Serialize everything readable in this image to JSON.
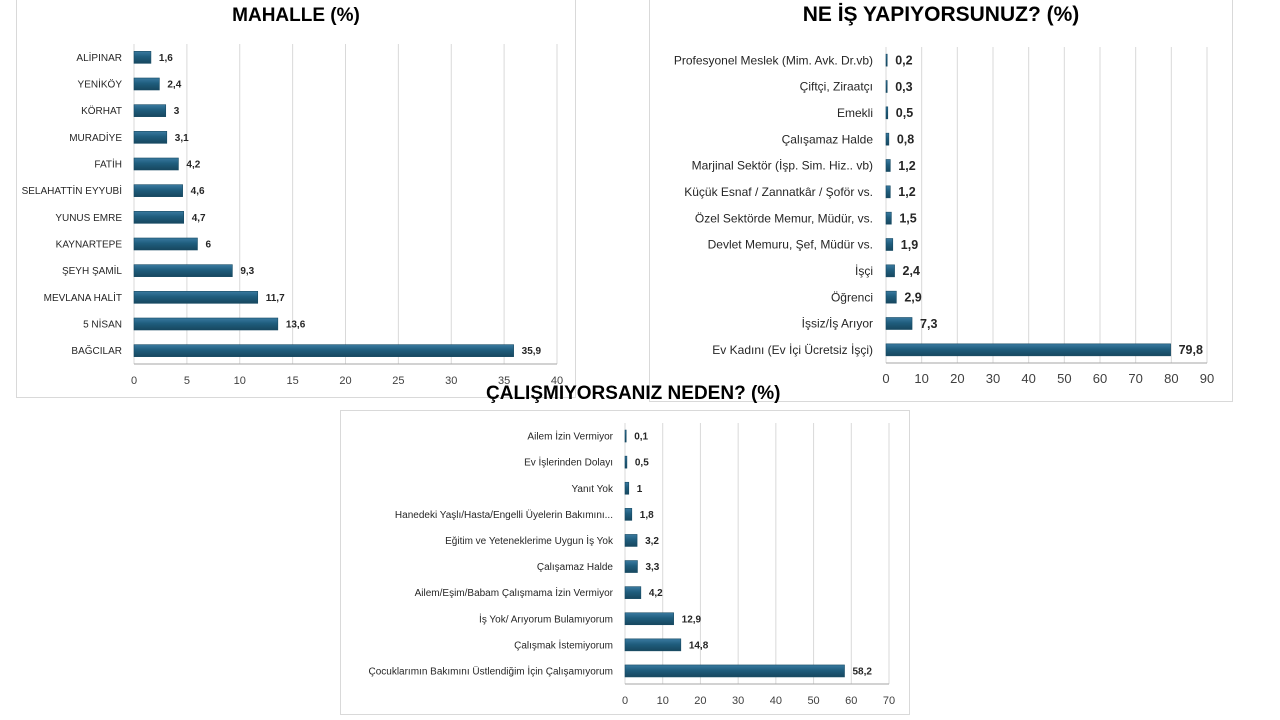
{
  "colors": {
    "bar": "#1f5d7d",
    "bar_light": "#3a7aa0",
    "grid": "#d9d9d9",
    "axis": "#a6a6a6"
  },
  "chart_data": [
    {
      "type": "bar",
      "orientation": "horizontal",
      "title": "MAHALLE (%)",
      "categories": [
        "ALİPINAR",
        "YENİKÖY",
        "KÖRHAT",
        "MURADİYE",
        "FATİH",
        "SELAHATTİN EYYUBİ",
        "YUNUS EMRE",
        "KAYNARTEPE",
        "ŞEYH ŞAMİL",
        "MEVLANA HALİT",
        "5 NİSAN",
        "BAĞCILAR"
      ],
      "values": [
        1.6,
        2.4,
        3,
        3.1,
        4.2,
        4.6,
        4.7,
        6,
        9.3,
        11.7,
        13.6,
        35.9
      ],
      "value_labels": [
        "1,6",
        "2,4",
        "3",
        "3,1",
        "4,2",
        "4,6",
        "4,7",
        "6",
        "9,3",
        "11,7",
        "13,6",
        "35,9"
      ],
      "xlim": [
        0,
        40
      ],
      "ticks": [
        0,
        5,
        10,
        15,
        20,
        25,
        30,
        35,
        40
      ],
      "tick_labels": [
        "0",
        "5",
        "10",
        "15",
        "20",
        "25",
        "30",
        "35",
        "40"
      ],
      "grid": true
    },
    {
      "type": "bar",
      "orientation": "horizontal",
      "title": "NE İŞ YAPIYORSUNUZ? (%)",
      "categories": [
        "Profesyonel Meslek (Mim. Avk. Dr.vb)",
        "Çiftçi, Ziraatçı",
        "Emekli",
        "Çalışamaz Halde",
        "Marjinal Sektör (İşp. Sim. Hiz.. vb)",
        "Küçük Esnaf / Zannatkâr / Şoför vs.",
        "Özel Sektörde Memur, Müdür, vs.",
        "Devlet Memuru, Şef, Müdür vs.",
        "İşçi",
        "Öğrenci",
        "İşsiz/İş Arıyor",
        "Ev Kadını (Ev İçi Ücretsiz İşçi)"
      ],
      "values": [
        0.2,
        0.3,
        0.5,
        0.8,
        1.2,
        1.2,
        1.5,
        1.9,
        2.4,
        2.9,
        7.3,
        79.8
      ],
      "value_labels": [
        "0,2",
        "0,3",
        "0,5",
        "0,8",
        "1,2",
        "1,2",
        "1,5",
        "1,9",
        "2,4",
        "2,9",
        "7,3",
        "79,8"
      ],
      "xlim": [
        0,
        90
      ],
      "ticks": [
        0,
        10,
        20,
        30,
        40,
        50,
        60,
        70,
        80,
        90
      ],
      "tick_labels": [
        "0",
        "10",
        "20",
        "30",
        "40",
        "50",
        "60",
        "70",
        "80",
        "90"
      ],
      "grid": true
    },
    {
      "type": "bar",
      "orientation": "horizontal",
      "title": "ÇALIŞMIYORSANIZ NEDEN? (%)",
      "categories": [
        "Ailem İzin Vermiyor",
        "Ev İşlerinden Dolayı",
        "Yanıt Yok",
        "Hanedeki Yaşlı/Hasta/Engelli Üyelerin Bakımını...",
        "Eğitim ve Yeteneklerime Uygun İş Yok",
        "Çalışamaz Halde",
        "Ailem/Eşim/Babam Çalışmama İzin Vermiyor",
        "İş Yok/ Arıyorum Bulamıyorum",
        "Çalışmak İstemiyorum",
        "Çocuklarımın Bakımını Üstlendiğim İçin Çalışamıyorum"
      ],
      "values": [
        0.1,
        0.5,
        1,
        1.8,
        3.2,
        3.3,
        4.2,
        12.9,
        14.8,
        58.2
      ],
      "value_labels": [
        "0,1",
        "0,5",
        "1",
        "1,8",
        "3,2",
        "3,3",
        "4,2",
        "12,9",
        "14,8",
        "58,2"
      ],
      "xlim": [
        0,
        70
      ],
      "ticks": [
        0,
        10,
        20,
        30,
        40,
        50,
        60,
        70
      ],
      "tick_labels": [
        "0",
        "10",
        "20",
        "30",
        "40",
        "50",
        "60",
        "70"
      ],
      "grid": true
    }
  ]
}
